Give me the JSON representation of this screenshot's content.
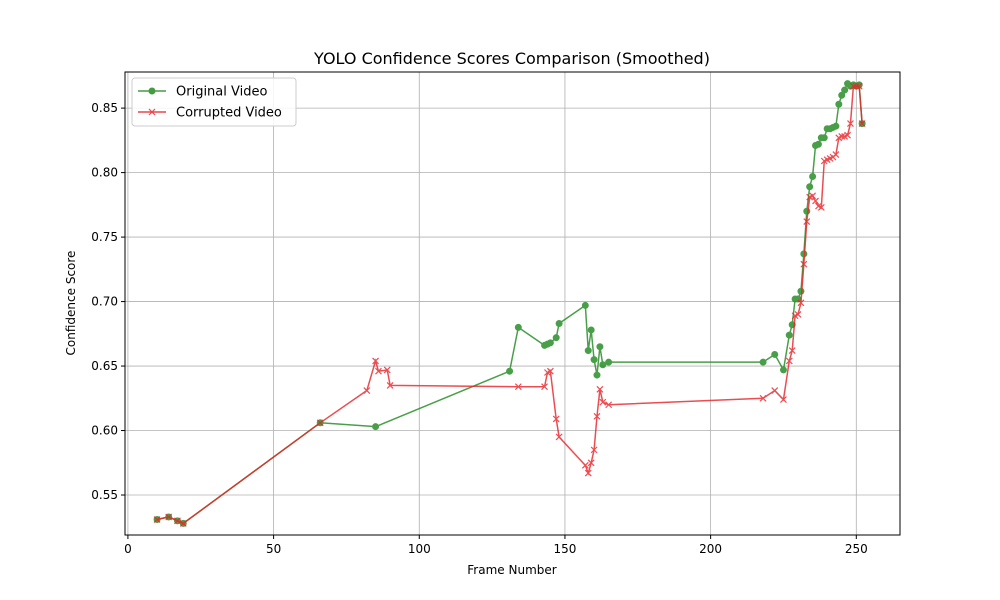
{
  "chart_data": {
    "type": "line",
    "title": "YOLO Confidence Scores Comparison (Smoothed)",
    "xlabel": "Frame Number",
    "ylabel": "Confidence Score",
    "xlim": [
      -1,
      265
    ],
    "ylim": [
      0.519,
      0.878
    ],
    "xticks": [
      0,
      50,
      100,
      150,
      200,
      250
    ],
    "yticks": [
      0.55,
      0.6,
      0.65,
      0.7,
      0.75,
      0.8,
      0.85
    ],
    "grid": true,
    "legend_position": "top-left",
    "series": [
      {
        "name": "Original Video",
        "color": "#228b22",
        "marker": "circle",
        "x": [
          10,
          14,
          17,
          19,
          66,
          85,
          131,
          134,
          143,
          144,
          145,
          147,
          148,
          157,
          158,
          159,
          160,
          161,
          162,
          163,
          165,
          218,
          222,
          225,
          227,
          228,
          229,
          230,
          231,
          232,
          233,
          234,
          235,
          236,
          237,
          238,
          239,
          240,
          241,
          242,
          243,
          244,
          245,
          246,
          247,
          248,
          249,
          250,
          251,
          252
        ],
        "y": [
          0.531,
          0.533,
          0.53,
          0.528,
          0.606,
          0.603,
          0.646,
          0.68,
          0.666,
          0.667,
          0.668,
          0.672,
          0.683,
          0.697,
          0.662,
          0.678,
          0.655,
          0.643,
          0.665,
          0.651,
          0.653,
          0.653,
          0.659,
          0.647,
          0.674,
          0.682,
          0.702,
          0.702,
          0.708,
          0.737,
          0.77,
          0.789,
          0.797,
          0.821,
          0.822,
          0.827,
          0.827,
          0.834,
          0.834,
          0.835,
          0.836,
          0.853,
          0.86,
          0.864,
          0.869,
          0.867,
          0.868,
          0.867,
          0.868,
          0.838
        ]
      },
      {
        "name": "Corrupted Video",
        "color": "#e8262b",
        "marker": "x",
        "x": [
          10,
          14,
          17,
          19,
          66,
          82,
          85,
          86,
          89,
          90,
          134,
          143,
          144,
          145,
          147,
          148,
          157,
          158,
          159,
          160,
          161,
          162,
          163,
          165,
          218,
          222,
          225,
          227,
          228,
          229,
          230,
          231,
          232,
          233,
          234,
          235,
          236,
          237,
          238,
          239,
          240,
          241,
          242,
          243,
          244,
          245,
          246,
          247,
          248,
          249,
          250,
          251,
          252
        ],
        "y": [
          0.531,
          0.533,
          0.53,
          0.528,
          0.606,
          0.631,
          0.654,
          0.646,
          0.647,
          0.635,
          0.634,
          0.634,
          0.645,
          0.646,
          0.609,
          0.595,
          0.573,
          0.567,
          0.575,
          0.585,
          0.611,
          0.632,
          0.622,
          0.62,
          0.625,
          0.631,
          0.624,
          0.654,
          0.662,
          0.689,
          0.69,
          0.699,
          0.729,
          0.762,
          0.781,
          0.782,
          0.778,
          0.774,
          0.773,
          0.809,
          0.81,
          0.811,
          0.812,
          0.814,
          0.827,
          0.828,
          0.828,
          0.829,
          0.838,
          0.867,
          0.867,
          0.867,
          0.838
        ]
      }
    ]
  }
}
